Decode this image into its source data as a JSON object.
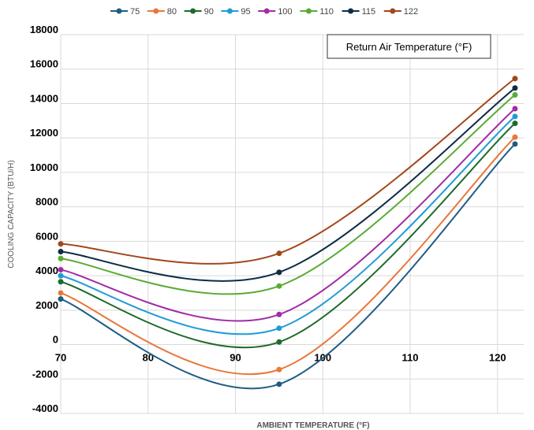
{
  "chart_data": {
    "type": "line",
    "xlabel": "AMBIENT TEMPERATURE (°F)",
    "ylabel": "COOLING CAPACITY (BTU/H)",
    "xlim": [
      70,
      123
    ],
    "ylim": [
      -4000,
      18000
    ],
    "x_ticks": [
      "70",
      "80",
      "90",
      "100",
      "110",
      "120"
    ],
    "y_ticks": [
      "-4000",
      "-2000",
      "0",
      "2000",
      "4000",
      "6000",
      "8000",
      "10000",
      "12000",
      "14000",
      "16000",
      "18000"
    ],
    "x_tick_values": [
      70,
      80,
      90,
      100,
      110,
      120
    ],
    "y_tick_values": [
      -4000,
      -2000,
      0,
      2000,
      4000,
      6000,
      8000,
      10000,
      12000,
      14000,
      16000,
      18000
    ],
    "grid": true,
    "legend_position": "top",
    "annotation": "Return Air Temperature (°F)",
    "x": [
      70,
      95,
      122
    ],
    "series": [
      {
        "name": "75",
        "color": "#1f5c84",
        "values": [
          2650,
          -2300,
          11650
        ]
      },
      {
        "name": "80",
        "color": "#e8773a",
        "values": [
          3000,
          -1450,
          12050
        ]
      },
      {
        "name": "90",
        "color": "#1e6b2c",
        "values": [
          3650,
          150,
          12850
        ]
      },
      {
        "name": "95",
        "color": "#1f9bd7",
        "values": [
          4000,
          950,
          13250
        ]
      },
      {
        "name": "100",
        "color": "#a12ca5",
        "values": [
          4350,
          1750,
          13700
        ]
      },
      {
        "name": "110",
        "color": "#5aaa35",
        "values": [
          5000,
          3400,
          14500
        ]
      },
      {
        "name": "115",
        "color": "#0d2c45",
        "values": [
          5400,
          4200,
          14900
        ]
      },
      {
        "name": "122",
        "color": "#a3471a",
        "values": [
          5850,
          5300,
          15450
        ]
      }
    ]
  }
}
